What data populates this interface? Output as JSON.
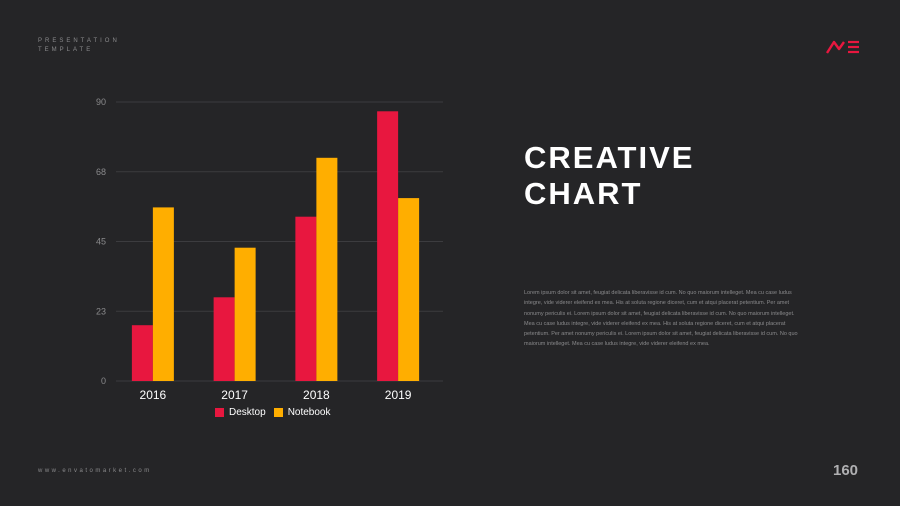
{
  "header": {
    "line1": "PRESENTATION",
    "line2": "TEMPLATE"
  },
  "logo": {
    "name": "me-logo",
    "text": "ME",
    "color": "#e8173f"
  },
  "title": {
    "line1": "CREATIVE",
    "line2": "CHART"
  },
  "body_text": "Lorem ipsum dolor sit amet, feugiat delicata liberavisse id cum. No quo maiorum intelleget. Mea cu case ludus integre, vide viderer eleifend ex mea. His at soluta regione diceret, cum et atqui placerat petentium. Per amet nonumy periculis ei. Lorem ipsum dolor sit amet, feugiat delicata liberavisse id cum. No quo maiorum intelleget. Mea cu case ludus integre, vide viderer eleifend ex mea. His at soluta regione diceret, cum et atqui placerat petentium. Per amet nonumy periculis ei. Lorem ipsum dolor sit amet, feugiat delicata liberavisse id cum. No quo maiorum intelleget. Mea cu case ludus integre, vide viderer eleifend ex mea.",
  "footer": {
    "url": "www.envatomarket.com",
    "page_number": "160"
  },
  "colors": {
    "desktop": "#e8173f",
    "notebook": "#ffae00"
  },
  "chart_data": {
    "type": "bar",
    "categories": [
      "2016",
      "2017",
      "2018",
      "2019"
    ],
    "series": [
      {
        "name": "Desktop",
        "values": [
          18,
          27,
          53,
          87
        ]
      },
      {
        "name": "Notebook",
        "values": [
          56,
          43,
          72,
          59
        ]
      }
    ],
    "yticks": [
      "0",
      "23",
      "45",
      "68",
      "90"
    ],
    "ylim": [
      0,
      90
    ],
    "grid": true,
    "legend": "bottom"
  }
}
